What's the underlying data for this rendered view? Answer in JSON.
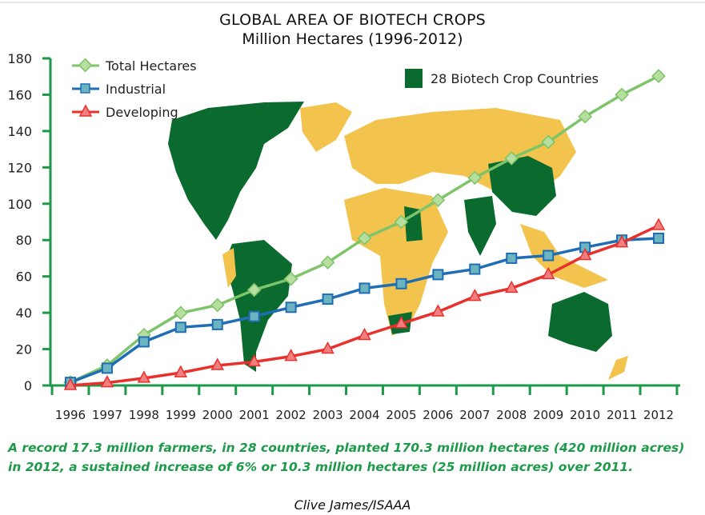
{
  "chart_data": {
    "type": "line",
    "title": "GLOBAL AREA OF BIOTECH CROPS",
    "subtitle": "Million Hectares (1996-2012)",
    "xlabel": "",
    "ylabel": "",
    "ylim": [
      0,
      180
    ],
    "yticks": [
      0,
      20,
      40,
      60,
      80,
      100,
      120,
      140,
      160,
      180
    ],
    "x": [
      "1996",
      "1997",
      "1998",
      "1999",
      "2000",
      "2001",
      "2002",
      "2003",
      "2004",
      "2005",
      "2006",
      "2007",
      "2008",
      "2009",
      "2010",
      "2011",
      "2012"
    ],
    "legend_position": "top-left",
    "series": [
      {
        "name": "Total Hectares",
        "color": "#7dc46a",
        "marker": "diamond",
        "values": [
          1.7,
          11,
          27.8,
          39.9,
          44.2,
          52.6,
          58.7,
          67.7,
          81,
          90,
          102,
          114.3,
          125,
          134,
          148,
          160,
          170.3
        ]
      },
      {
        "name": "Industrial",
        "color": "#1f6db5",
        "marker": "square",
        "values": [
          1.7,
          9.5,
          24,
          32,
          33.5,
          38,
          43,
          47.5,
          53.5,
          56,
          61,
          64,
          70,
          71.5,
          76,
          80,
          81
        ]
      },
      {
        "name": "Developing",
        "color": "#e8302c",
        "marker": "triangle",
        "values": [
          0,
          1.5,
          4,
          7,
          11,
          13,
          16,
          20,
          27.5,
          34,
          40.5,
          49,
          53.5,
          61,
          71.5,
          78.5,
          88
        ]
      }
    ],
    "map_legend": "28 Biotech Crop Countries",
    "caption": "A record 17.3 million farmers, in 28 countries, planted 170.3 million hectares (420 million acres) in 2012, a sustained increase of 6% or 10.3 million hectares (25 million acres) over 2011.",
    "credit": "Clive James/ISAAA"
  },
  "colors": {
    "axis": "#1c9a4a",
    "biotech": "#0b6b2e",
    "other": "#f2c44e"
  }
}
